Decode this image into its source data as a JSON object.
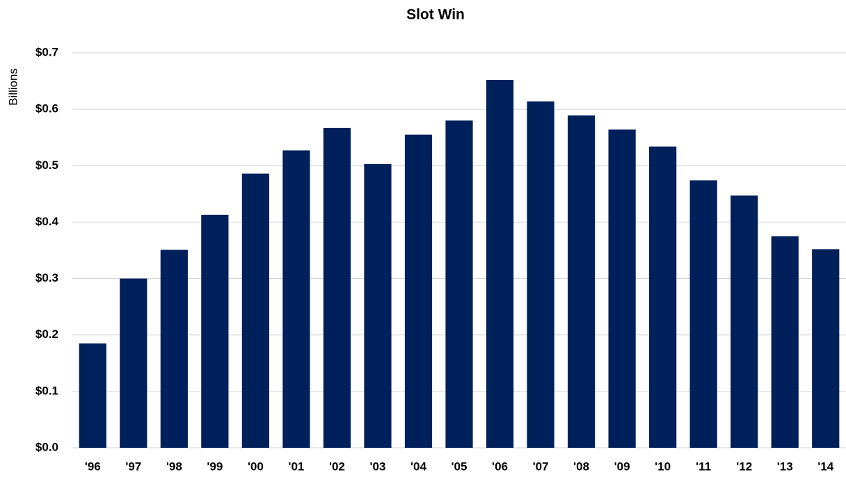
{
  "chart_data": {
    "type": "bar",
    "title": "Slot Win",
    "y_label": "Billions",
    "categories": [
      "'96",
      "'97",
      "'98",
      "'99",
      "'00",
      "'01",
      "'02",
      "'03",
      "'04",
      "'05",
      "'06",
      "'07",
      "'08",
      "'09",
      "'10",
      "'11",
      "'12",
      "'13",
      "'14"
    ],
    "values": [
      0.185,
      0.3,
      0.351,
      0.413,
      0.486,
      0.527,
      0.567,
      0.503,
      0.555,
      0.58,
      0.652,
      0.614,
      0.589,
      0.564,
      0.534,
      0.474,
      0.447,
      0.375,
      0.352
    ],
    "color": "#00205b",
    "ylim": [
      0,
      0.7
    ],
    "yticks": [
      {
        "value": 0,
        "label": "$0.0"
      },
      {
        "value": 0.1,
        "label": "$0.1"
      },
      {
        "value": 0.2,
        "label": "$0.2"
      },
      {
        "value": 0.3,
        "label": "$0.3"
      },
      {
        "value": 0.4,
        "label": "$0.4"
      },
      {
        "value": 0.5,
        "label": "$0.5"
      },
      {
        "value": 0.6,
        "label": "$0.6"
      },
      {
        "value": 0.7,
        "label": "$0.7"
      }
    ],
    "grid": true
  }
}
